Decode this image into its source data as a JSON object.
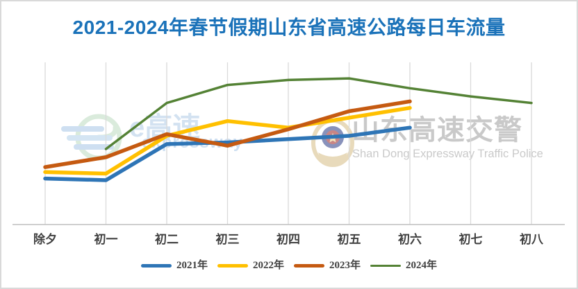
{
  "title": {
    "text": "2021-2024年春节假期山东省高速公路每日车流量",
    "color": "#1a72b9"
  },
  "watermark_left": {
    "logo": "e-expressway-logo",
    "text_cn": "e高速",
    "text_en": "expressway"
  },
  "watermark_right": {
    "badge": "police-badge",
    "text_cn": "山东高速交警",
    "text_en": "Shan Dong Expressway Traffic Police"
  },
  "chart_data": {
    "type": "line",
    "title": "2021-2024年春节假期山东省高速公路每日车流量",
    "categories": [
      "除夕",
      "初一",
      "初二",
      "初三",
      "初四",
      "初五",
      "初六",
      "初七",
      "初八"
    ],
    "series": [
      {
        "name": "2021年",
        "color": "#2e75b6",
        "stroke_width": 5.5,
        "values": [
          28,
          27,
          49,
          50,
          52,
          54,
          59,
          null,
          null
        ]
      },
      {
        "name": "2022年",
        "color": "#ffc000",
        "stroke_width": 5.5,
        "values": [
          32,
          31,
          54,
          63,
          59,
          65,
          71,
          null,
          null
        ]
      },
      {
        "name": "2023年",
        "color": "#c55a11",
        "stroke_width": 5.5,
        "values": [
          35,
          41,
          55,
          48,
          58,
          69,
          75,
          null,
          null
        ]
      },
      {
        "name": "2024年",
        "color": "#548235",
        "stroke_width": 3.5,
        "values": [
          null,
          46,
          74,
          85,
          88,
          89,
          83,
          78,
          74
        ]
      }
    ],
    "xlabel": "",
    "ylabel": "",
    "ylim": [
      0,
      100
    ],
    "y_axis_labels_visible": false,
    "value_scale_note": "y-axis is unlabeled in the image; values are relative estimates, 0-100 of plot height",
    "grid": "vertical-only",
    "gridline_color": "#d9d9d9",
    "axis_line_color": "#bfbfbf",
    "legend_position": "bottom"
  }
}
